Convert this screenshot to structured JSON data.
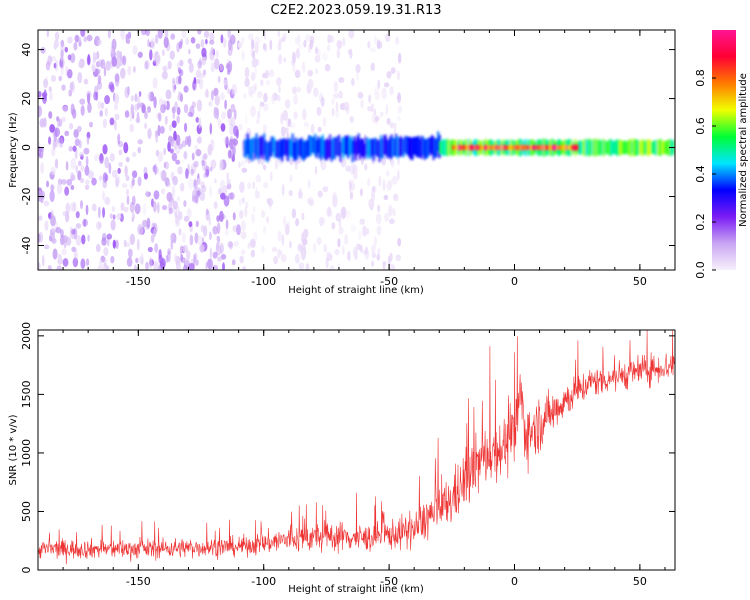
{
  "title": "C2E2.2023.059.19.31.R13",
  "chart_data": [
    {
      "type": "heatmap",
      "xlabel": "Height of straight line (km)",
      "ylabel": "Frequency (Hz)",
      "xlim": [
        -190,
        64
      ],
      "ylim": [
        -50,
        48
      ],
      "xticks": [
        -150,
        -100,
        -50,
        0,
        50
      ],
      "yticks": [
        -40,
        -20,
        0,
        20,
        40
      ],
      "colorbar": {
        "label": "Normalized spectral amplitude",
        "range": [
          0.0,
          1.0
        ],
        "ticks": [
          0.0,
          0.2,
          0.4,
          0.6,
          0.8
        ],
        "colors": [
          "#f7f0fb",
          "#c9a5f3",
          "#7b1cf5",
          "#0000ff",
          "#00e5ff",
          "#00ff33",
          "#f0ff00",
          "#ff7a00",
          "#ff0033",
          "#ff1493"
        ]
      },
      "regions": [
        {
          "x": [
            -190,
            -110
          ],
          "freq_range": [
            -50,
            48
          ],
          "amplitude": 0.1,
          "pattern": "broadband noise"
        },
        {
          "x": [
            -110,
            -45
          ],
          "freq_range": [
            -50,
            48
          ],
          "amplitude": 0.03,
          "pattern": "sparse noise"
        },
        {
          "x": [
            -108,
            -30
          ],
          "center_freq": 0,
          "halfwidth_hz": 4,
          "amplitude": 0.35
        },
        {
          "x": [
            -30,
            64
          ],
          "center_freq": 0,
          "halfwidth_hz": 3,
          "amplitude": 0.55
        },
        {
          "x": [
            -25,
            25
          ],
          "center_freq": 0,
          "halfwidth_hz": 1,
          "amplitude": 0.85
        }
      ]
    },
    {
      "type": "line",
      "xlabel": "Height of straight line (km)",
      "ylabel": "SNR (10 * v/v)",
      "xlim": [
        -190,
        64
      ],
      "ylim": [
        0,
        2050
      ],
      "xticks": [
        -150,
        -100,
        -50,
        0,
        50
      ],
      "yticks": [
        0,
        500,
        1000,
        1500,
        2000
      ],
      "color": "#ee3333",
      "series": [
        {
          "x": [
            -190,
            -170,
            -150,
            -130,
            -110,
            -100,
            -90,
            -80,
            -70,
            -60,
            -50,
            -45,
            -40,
            -35,
            -30,
            -25,
            -20,
            -15,
            -10,
            -5,
            0,
            2,
            5,
            10,
            20,
            30,
            40,
            50,
            64
          ],
          "mean": [
            180,
            180,
            180,
            190,
            200,
            230,
            260,
            280,
            290,
            270,
            300,
            320,
            340,
            450,
            500,
            600,
            750,
            900,
            1000,
            1050,
            1100,
            1500,
            1150,
            1250,
            1450,
            1600,
            1650,
            1700,
            1750
          ],
          "spread": [
            130,
            130,
            130,
            130,
            130,
            150,
            180,
            200,
            200,
            180,
            200,
            220,
            240,
            300,
            300,
            350,
            400,
            400,
            400,
            400,
            400,
            600,
            400,
            350,
            250,
            200,
            200,
            200,
            200
          ]
        }
      ]
    }
  ]
}
